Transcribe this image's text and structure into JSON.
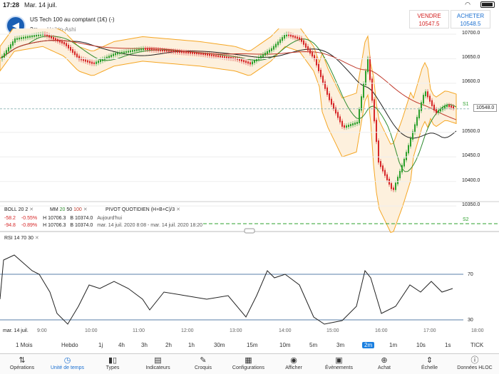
{
  "status_bar": {
    "time": "17:28",
    "date": "Mar. 14 juil."
  },
  "header": {
    "instrument": "US Tech 100 au comptant (1€) (-)",
    "timeframe": "2m",
    "chart_type": "Heikin-Ashi"
  },
  "trade": {
    "sell_label": "VENDRE",
    "sell_price": "10547.5",
    "buy_label": "ACHETER",
    "buy_price": "10548.5"
  },
  "price_axis": {
    "ticks": [
      "10700.0",
      "10650.0",
      "10600.0",
      "10500.0",
      "10450.0",
      "10400.0",
      "10350.0"
    ],
    "current": "10548.0",
    "s1": "S1",
    "s2": "S2"
  },
  "indicators": {
    "boll": {
      "name": "BOLL",
      "p1": "20",
      "p2": "2"
    },
    "mm": {
      "name": "MM",
      "p1": "20",
      "p2": "50",
      "p3": "100"
    },
    "pivot": {
      "name": "PIVOT",
      "mode": "QUOTIDIEN",
      "formula": "(H+B+C)/3"
    },
    "row1": {
      "chg": "-58.2",
      "pct": "-0.55%",
      "h": "H 10706.3",
      "b": "B 10374.0",
      "desc": "Aujourd'hui"
    },
    "row2": {
      "chg": "-94.8",
      "pct": "-0.89%",
      "h": "H 10706.3",
      "b": "B 10374.0",
      "desc": "mar. 14 juil. 2020 8:08 - mar. 14 juil. 2020 18:20"
    },
    "rsi": {
      "name": "RSI",
      "p1": "14",
      "p2": "70",
      "p3": "30"
    },
    "rsi_ticks": [
      "70",
      "30"
    ]
  },
  "time_axis": {
    "date_label": "mar. 14 juil.",
    "ticks": [
      "9:00",
      "10:00",
      "11:00",
      "12:00",
      "13:00",
      "14:00",
      "15:00",
      "16:00",
      "17:00",
      "18:00"
    ]
  },
  "timeframes": [
    "1 Mois",
    "Hebdo",
    "1j",
    "4h",
    "3h",
    "2h",
    "1h",
    "30m",
    "15m",
    "10m",
    "5m",
    "3m",
    "2m",
    "1m",
    "10s",
    "1s",
    "TICK"
  ],
  "active_timeframe": "2m",
  "tools": [
    {
      "label": "Opérations",
      "icon": "sort-arrows-icon"
    },
    {
      "label": "Unité de temps",
      "icon": "clock-icon"
    },
    {
      "label": "Types",
      "icon": "candles-icon"
    },
    {
      "label": "Indicateurs",
      "icon": "indicators-icon"
    },
    {
      "label": "Croquis",
      "icon": "pencil-icon"
    },
    {
      "label": "Configurations",
      "icon": "layout-icon"
    },
    {
      "label": "Afficher",
      "icon": "eye-icon"
    },
    {
      "label": "Évènements",
      "icon": "calendar-icon"
    },
    {
      "label": "Achat",
      "icon": "cart-icon"
    },
    {
      "label": "Échelle",
      "icon": "scale-icon"
    },
    {
      "label": "Données HLOC",
      "icon": "info-icon"
    }
  ],
  "colors": {
    "accent": "#1a6fd0",
    "up": "#2ca02c",
    "down": "#d62728",
    "band": "#f5a623",
    "ma20": "#2e8b2e",
    "ma50": "#222222",
    "ma100": "#c0392b"
  }
}
